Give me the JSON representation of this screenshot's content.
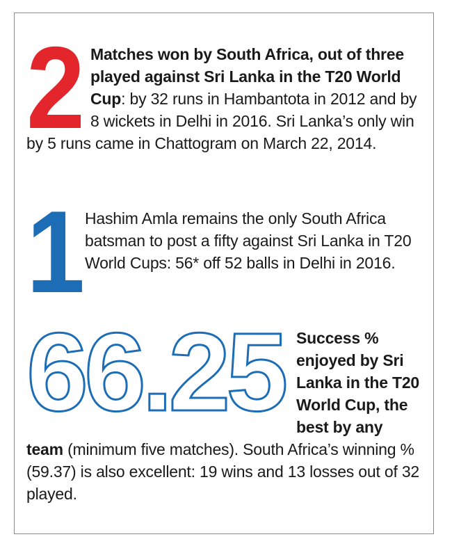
{
  "items": [
    {
      "number": "2",
      "bold": "Matches won by South Africa, out of three played against Sri Lanka in the T20 World Cup",
      "text": ": by 32 runs in Hambantota in 2012 and by 8 wickets in Delhi in 2016. Sri Lanka’s only win by 5 runs came in Chattogram on March 22, 2014."
    },
    {
      "number": "1",
      "text": "Hashim Amla remains the only South Africa batsman to post a fifty against Sri Lanka in T20 World Cups: 56* off 52 balls in Delhi in 2016."
    },
    {
      "number": "66.25",
      "bold": "Success % enjoyed by Sri Lanka in the T20 World Cup, the best by any team",
      "text": " (minimum five matches). South Africa’s winning % (59.37) is also excellent: 19 wins and 13 losses out of 32 played."
    }
  ]
}
